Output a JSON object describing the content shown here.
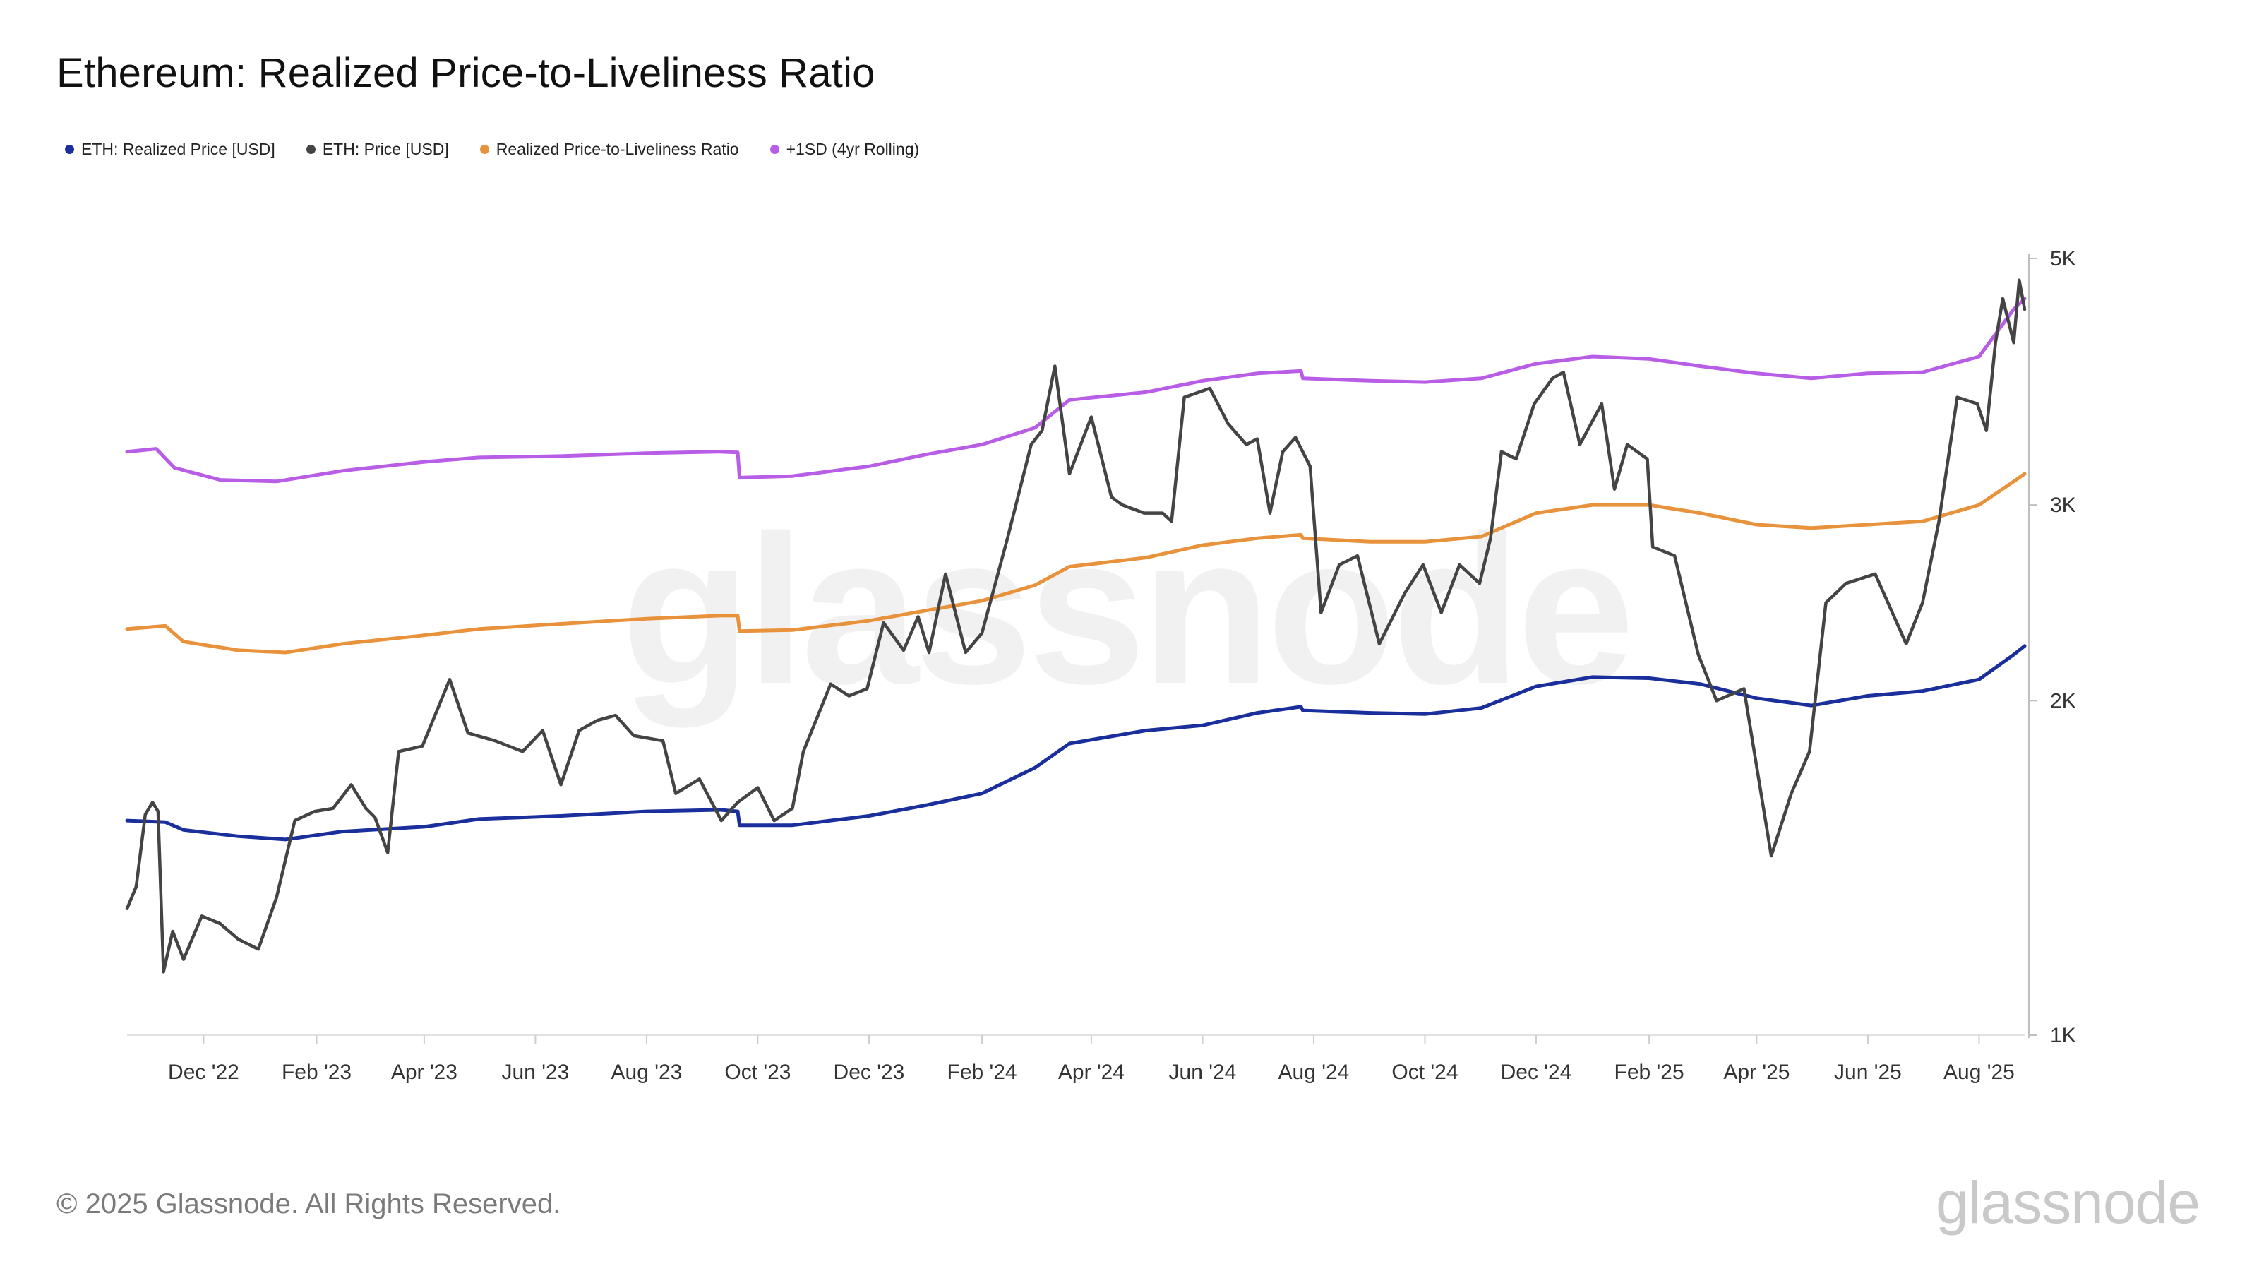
{
  "title": "Ethereum: Realized Price-to-Liveliness Ratio",
  "copyright": "© 2025 Glassnode. All Rights Reserved.",
  "logo_text": "glassnode",
  "watermark_text": "glassnode",
  "legend": [
    {
      "label": "ETH: Realized Price [USD]",
      "color": "#1a2f9c"
    },
    {
      "label": "ETH: Price [USD]",
      "color": "#444444"
    },
    {
      "label": "Realized Price-to-Liveliness Ratio",
      "color": "#e8923c"
    },
    {
      "label": "+1SD (4yr Rolling)",
      "color": "#b85ee6"
    }
  ],
  "chart_data": {
    "type": "line",
    "yscale": "log",
    "ylim": [
      1000,
      5000
    ],
    "xlim": [
      "2022-10-20",
      "2025-08-26"
    ],
    "y_ticks": [
      {
        "value": 1000,
        "label": "1K"
      },
      {
        "value": 2000,
        "label": "2K"
      },
      {
        "value": 3000,
        "label": "3K"
      },
      {
        "value": 5000,
        "label": "5K"
      }
    ],
    "x_ticks": [
      {
        "date": "2022-12-01",
        "label": "Dec '22"
      },
      {
        "date": "2023-02-01",
        "label": "Feb '23"
      },
      {
        "date": "2023-04-01",
        "label": "Apr '23"
      },
      {
        "date": "2023-06-01",
        "label": "Jun '23"
      },
      {
        "date": "2023-08-01",
        "label": "Aug '23"
      },
      {
        "date": "2023-10-01",
        "label": "Oct '23"
      },
      {
        "date": "2023-12-01",
        "label": "Dec '23"
      },
      {
        "date": "2024-02-01",
        "label": "Feb '24"
      },
      {
        "date": "2024-04-01",
        "label": "Apr '24"
      },
      {
        "date": "2024-06-01",
        "label": "Jun '24"
      },
      {
        "date": "2024-08-01",
        "label": "Aug '24"
      },
      {
        "date": "2024-10-01",
        "label": "Oct '24"
      },
      {
        "date": "2024-12-01",
        "label": "Dec '24"
      },
      {
        "date": "2025-02-01",
        "label": "Feb '25"
      },
      {
        "date": "2025-04-01",
        "label": "Apr '25"
      },
      {
        "date": "2025-06-01",
        "label": "Jun '25"
      },
      {
        "date": "2025-08-01",
        "label": "Aug '25"
      }
    ],
    "series": [
      {
        "name": "+1SD (4yr Rolling)",
        "color": "#b85ee6",
        "points": [
          [
            "2022-10-20",
            3350
          ],
          [
            "2022-11-05",
            3370
          ],
          [
            "2022-11-15",
            3240
          ],
          [
            "2022-12-10",
            3160
          ],
          [
            "2023-01-10",
            3150
          ],
          [
            "2023-02-15",
            3220
          ],
          [
            "2023-04-01",
            3280
          ],
          [
            "2023-05-01",
            3310
          ],
          [
            "2023-06-15",
            3320
          ],
          [
            "2023-08-01",
            3340
          ],
          [
            "2023-09-10",
            3350
          ],
          [
            "2023-09-20",
            3345
          ],
          [
            "2023-09-21",
            3175
          ],
          [
            "2023-10-20",
            3185
          ],
          [
            "2023-12-01",
            3250
          ],
          [
            "2024-01-01",
            3330
          ],
          [
            "2024-02-01",
            3400
          ],
          [
            "2024-03-01",
            3520
          ],
          [
            "2024-03-20",
            3730
          ],
          [
            "2024-05-01",
            3790
          ],
          [
            "2024-06-01",
            3880
          ],
          [
            "2024-07-01",
            3940
          ],
          [
            "2024-07-25",
            3960
          ],
          [
            "2024-07-26",
            3900
          ],
          [
            "2024-09-01",
            3880
          ],
          [
            "2024-10-01",
            3870
          ],
          [
            "2024-11-01",
            3900
          ],
          [
            "2024-12-01",
            4020
          ],
          [
            "2025-01-01",
            4080
          ],
          [
            "2025-02-01",
            4060
          ],
          [
            "2025-03-01",
            4000
          ],
          [
            "2025-04-01",
            3940
          ],
          [
            "2025-05-01",
            3900
          ],
          [
            "2025-06-01",
            3940
          ],
          [
            "2025-07-01",
            3950
          ],
          [
            "2025-08-01",
            4080
          ],
          [
            "2025-08-20",
            4500
          ],
          [
            "2025-08-26",
            4600
          ]
        ]
      },
      {
        "name": "Realized Price-to-Liveliness Ratio",
        "color": "#e8923c",
        "points": [
          [
            "2022-10-20",
            2320
          ],
          [
            "2022-11-10",
            2335
          ],
          [
            "2022-11-20",
            2260
          ],
          [
            "2022-12-20",
            2220
          ],
          [
            "2023-01-15",
            2210
          ],
          [
            "2023-02-15",
            2250
          ],
          [
            "2023-04-01",
            2290
          ],
          [
            "2023-05-01",
            2320
          ],
          [
            "2023-06-15",
            2345
          ],
          [
            "2023-08-01",
            2370
          ],
          [
            "2023-09-10",
            2385
          ],
          [
            "2023-09-20",
            2385
          ],
          [
            "2023-09-21",
            2310
          ],
          [
            "2023-10-20",
            2315
          ],
          [
            "2023-12-01",
            2360
          ],
          [
            "2024-01-01",
            2410
          ],
          [
            "2024-02-01",
            2460
          ],
          [
            "2024-03-01",
            2540
          ],
          [
            "2024-03-20",
            2640
          ],
          [
            "2024-05-01",
            2690
          ],
          [
            "2024-06-01",
            2760
          ],
          [
            "2024-07-01",
            2800
          ],
          [
            "2024-07-25",
            2820
          ],
          [
            "2024-07-26",
            2800
          ],
          [
            "2024-09-01",
            2780
          ],
          [
            "2024-10-01",
            2780
          ],
          [
            "2024-11-01",
            2810
          ],
          [
            "2024-12-01",
            2950
          ],
          [
            "2025-01-01",
            3000
          ],
          [
            "2025-02-01",
            3000
          ],
          [
            "2025-03-01",
            2950
          ],
          [
            "2025-04-01",
            2880
          ],
          [
            "2025-05-01",
            2860
          ],
          [
            "2025-06-01",
            2880
          ],
          [
            "2025-07-01",
            2900
          ],
          [
            "2025-08-01",
            3000
          ],
          [
            "2025-08-20",
            3150
          ],
          [
            "2025-08-26",
            3200
          ]
        ]
      },
      {
        "name": "ETH: Realized Price [USD]",
        "color": "#1a2f9c",
        "points": [
          [
            "2022-10-20",
            1560
          ],
          [
            "2022-11-10",
            1555
          ],
          [
            "2022-11-20",
            1530
          ],
          [
            "2022-12-20",
            1510
          ],
          [
            "2023-01-15",
            1500
          ],
          [
            "2023-02-15",
            1525
          ],
          [
            "2023-04-01",
            1540
          ],
          [
            "2023-05-01",
            1565
          ],
          [
            "2023-06-15",
            1575
          ],
          [
            "2023-08-01",
            1590
          ],
          [
            "2023-09-10",
            1595
          ],
          [
            "2023-09-20",
            1590
          ],
          [
            "2023-09-21",
            1545
          ],
          [
            "2023-10-20",
            1545
          ],
          [
            "2023-12-01",
            1575
          ],
          [
            "2024-01-01",
            1610
          ],
          [
            "2024-02-01",
            1650
          ],
          [
            "2024-03-01",
            1740
          ],
          [
            "2024-03-20",
            1830
          ],
          [
            "2024-05-01",
            1880
          ],
          [
            "2024-06-01",
            1900
          ],
          [
            "2024-07-01",
            1950
          ],
          [
            "2024-07-25",
            1975
          ],
          [
            "2024-07-26",
            1960
          ],
          [
            "2024-09-01",
            1950
          ],
          [
            "2024-10-01",
            1945
          ],
          [
            "2024-11-01",
            1970
          ],
          [
            "2024-12-01",
            2060
          ],
          [
            "2025-01-01",
            2100
          ],
          [
            "2025-02-01",
            2095
          ],
          [
            "2025-03-01",
            2070
          ],
          [
            "2025-04-01",
            2010
          ],
          [
            "2025-05-01",
            1980
          ],
          [
            "2025-06-01",
            2020
          ],
          [
            "2025-07-01",
            2040
          ],
          [
            "2025-08-01",
            2090
          ],
          [
            "2025-08-20",
            2200
          ],
          [
            "2025-08-26",
            2240
          ]
        ]
      },
      {
        "name": "ETH: Price [USD]",
        "color": "#444444",
        "points": [
          [
            "2022-10-20",
            1300
          ],
          [
            "2022-10-25",
            1360
          ],
          [
            "2022-10-30",
            1580
          ],
          [
            "2022-11-03",
            1620
          ],
          [
            "2022-11-06",
            1590
          ],
          [
            "2022-11-09",
            1140
          ],
          [
            "2022-11-14",
            1240
          ],
          [
            "2022-11-20",
            1170
          ],
          [
            "2022-11-30",
            1280
          ],
          [
            "2022-12-10",
            1260
          ],
          [
            "2022-12-20",
            1220
          ],
          [
            "2022-12-31",
            1195
          ],
          [
            "2023-01-10",
            1330
          ],
          [
            "2023-01-20",
            1560
          ],
          [
            "2023-01-31",
            1590
          ],
          [
            "2023-02-10",
            1600
          ],
          [
            "2023-02-20",
            1680
          ],
          [
            "2023-02-28",
            1600
          ],
          [
            "2023-03-05",
            1570
          ],
          [
            "2023-03-12",
            1460
          ],
          [
            "2023-03-18",
            1800
          ],
          [
            "2023-03-31",
            1820
          ],
          [
            "2023-04-15",
            2090
          ],
          [
            "2023-04-25",
            1870
          ],
          [
            "2023-05-10",
            1840
          ],
          [
            "2023-05-25",
            1800
          ],
          [
            "2023-06-05",
            1880
          ],
          [
            "2023-06-15",
            1680
          ],
          [
            "2023-06-25",
            1880
          ],
          [
            "2023-07-05",
            1920
          ],
          [
            "2023-07-15",
            1940
          ],
          [
            "2023-07-25",
            1860
          ],
          [
            "2023-08-10",
            1840
          ],
          [
            "2023-08-17",
            1650
          ],
          [
            "2023-08-30",
            1700
          ],
          [
            "2023-09-11",
            1560
          ],
          [
            "2023-09-20",
            1620
          ],
          [
            "2023-10-01",
            1670
          ],
          [
            "2023-10-10",
            1560
          ],
          [
            "2023-10-20",
            1600
          ],
          [
            "2023-10-26",
            1800
          ],
          [
            "2023-11-10",
            2070
          ],
          [
            "2023-11-20",
            2020
          ],
          [
            "2023-11-30",
            2050
          ],
          [
            "2023-12-09",
            2350
          ],
          [
            "2023-12-20",
            2220
          ],
          [
            "2023-12-28",
            2380
          ],
          [
            "2024-01-03",
            2210
          ],
          [
            "2024-01-12",
            2600
          ],
          [
            "2024-01-23",
            2210
          ],
          [
            "2024-02-01",
            2300
          ],
          [
            "2024-02-15",
            2800
          ],
          [
            "2024-02-28",
            3400
          ],
          [
            "2024-03-05",
            3500
          ],
          [
            "2024-03-12",
            4000
          ],
          [
            "2024-03-20",
            3200
          ],
          [
            "2024-04-01",
            3600
          ],
          [
            "2024-04-12",
            3050
          ],
          [
            "2024-04-18",
            3000
          ],
          [
            "2024-04-30",
            2950
          ],
          [
            "2024-05-10",
            2950
          ],
          [
            "2024-05-15",
            2900
          ],
          [
            "2024-05-22",
            3750
          ],
          [
            "2024-06-05",
            3820
          ],
          [
            "2024-06-15",
            3550
          ],
          [
            "2024-06-25",
            3400
          ],
          [
            "2024-07-01",
            3440
          ],
          [
            "2024-07-08",
            2950
          ],
          [
            "2024-07-15",
            3350
          ],
          [
            "2024-07-22",
            3450
          ],
          [
            "2024-07-30",
            3250
          ],
          [
            "2024-08-05",
            2400
          ],
          [
            "2024-08-15",
            2650
          ],
          [
            "2024-08-25",
            2700
          ],
          [
            "2024-09-06",
            2250
          ],
          [
            "2024-09-20",
            2500
          ],
          [
            "2024-09-30",
            2650
          ],
          [
            "2024-10-10",
            2400
          ],
          [
            "2024-10-20",
            2650
          ],
          [
            "2024-10-31",
            2550
          ],
          [
            "2024-11-06",
            2800
          ],
          [
            "2024-11-12",
            3350
          ],
          [
            "2024-11-20",
            3300
          ],
          [
            "2024-11-30",
            3700
          ],
          [
            "2024-12-10",
            3900
          ],
          [
            "2024-12-16",
            3950
          ],
          [
            "2024-12-25",
            3400
          ],
          [
            "2025-01-06",
            3700
          ],
          [
            "2025-01-13",
            3100
          ],
          [
            "2025-01-20",
            3400
          ],
          [
            "2025-01-31",
            3300
          ],
          [
            "2025-02-03",
            2750
          ],
          [
            "2025-02-15",
            2700
          ],
          [
            "2025-02-28",
            2200
          ],
          [
            "2025-03-10",
            2000
          ],
          [
            "2025-03-25",
            2050
          ],
          [
            "2025-04-09",
            1450
          ],
          [
            "2025-04-20",
            1650
          ],
          [
            "2025-04-30",
            1800
          ],
          [
            "2025-05-09",
            2450
          ],
          [
            "2025-05-20",
            2550
          ],
          [
            "2025-06-05",
            2600
          ],
          [
            "2025-06-22",
            2250
          ],
          [
            "2025-07-01",
            2450
          ],
          [
            "2025-07-10",
            2900
          ],
          [
            "2025-07-20",
            3750
          ],
          [
            "2025-07-31",
            3700
          ],
          [
            "2025-08-05",
            3500
          ],
          [
            "2025-08-10",
            4200
          ],
          [
            "2025-08-14",
            4600
          ],
          [
            "2025-08-20",
            4200
          ],
          [
            "2025-08-23",
            4780
          ],
          [
            "2025-08-26",
            4500
          ]
        ]
      }
    ]
  }
}
